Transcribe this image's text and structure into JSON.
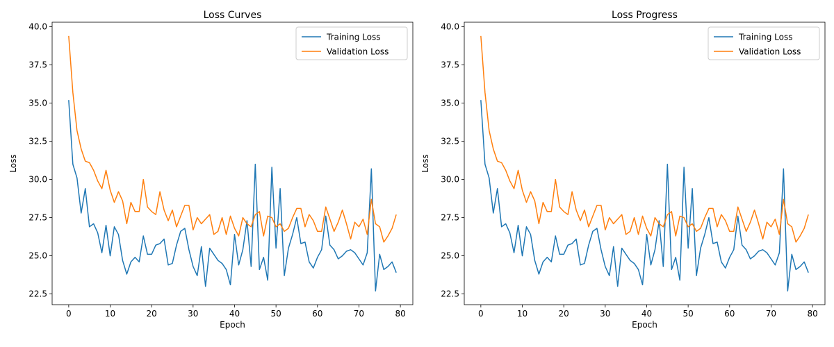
{
  "chart_data": [
    {
      "type": "line",
      "title": "Loss Curves",
      "xlabel": "Epoch",
      "ylabel": "Loss",
      "xlim": [
        -4,
        83
      ],
      "ylim": [
        21.8,
        40.3
      ],
      "xticks": [
        0,
        10,
        20,
        30,
        40,
        50,
        60,
        70,
        80
      ],
      "yticks": [
        22.5,
        25.0,
        27.5,
        30.0,
        32.5,
        35.0,
        37.5,
        40.0
      ],
      "ytick_labels": [
        "22.5",
        "25.0",
        "27.5",
        "30.0",
        "32.5",
        "35.0",
        "37.5",
        "40.0"
      ],
      "grid": false,
      "legend": "top-right",
      "series": [
        {
          "name": "Training Loss",
          "color": "#1f77b4",
          "values": [
            35.2,
            31.0,
            30.1,
            27.8,
            29.4,
            26.9,
            27.1,
            26.5,
            25.2,
            27.0,
            25.0,
            26.9,
            26.4,
            24.7,
            23.8,
            24.6,
            24.9,
            24.6,
            26.3,
            25.1,
            25.1,
            25.7,
            25.8,
            26.1,
            24.4,
            24.5,
            25.7,
            26.6,
            26.8,
            25.4,
            24.3,
            23.7,
            25.6,
            23.0,
            25.5,
            25.1,
            24.7,
            24.5,
            24.1,
            23.1,
            26.4,
            24.4,
            25.4,
            27.3,
            24.3,
            31.0,
            24.1,
            24.9,
            23.4,
            30.8,
            25.5,
            29.4,
            23.7,
            25.5,
            26.4,
            27.5,
            25.8,
            25.9,
            24.6,
            24.2,
            24.9,
            25.4,
            27.6,
            25.7,
            25.4,
            24.8,
            25.0,
            25.3,
            25.4,
            25.2,
            24.8,
            24.4,
            25.2,
            30.7,
            22.7,
            25.1,
            24.1,
            24.3,
            24.6,
            23.9
          ]
        },
        {
          "name": "Validation Loss",
          "color": "#ff7f0e",
          "values": [
            39.4,
            35.7,
            33.2,
            32.0,
            31.2,
            31.1,
            30.6,
            29.9,
            29.4,
            30.6,
            29.3,
            28.5,
            29.2,
            28.6,
            27.1,
            28.5,
            27.9,
            27.9,
            30.0,
            28.2,
            27.9,
            27.7,
            29.2,
            28.0,
            27.3,
            28.0,
            26.9,
            27.6,
            28.3,
            28.3,
            26.7,
            27.5,
            27.1,
            27.4,
            27.7,
            26.4,
            26.6,
            27.5,
            26.4,
            27.6,
            26.8,
            26.3,
            27.5,
            27.1,
            26.9,
            27.7,
            27.9,
            26.3,
            27.6,
            27.5,
            26.9,
            27.1,
            26.6,
            26.8,
            27.5,
            28.1,
            28.1,
            26.9,
            27.7,
            27.3,
            26.6,
            26.6,
            28.2,
            27.4,
            26.6,
            27.2,
            28.0,
            27.1,
            26.1,
            27.2,
            26.9,
            27.4,
            26.4,
            28.7,
            27.1,
            26.9,
            25.9,
            26.3,
            26.8,
            27.7
          ]
        }
      ]
    },
    {
      "type": "line",
      "title": "Loss Progress",
      "xlabel": "Epoch",
      "ylabel": "Loss",
      "xlim": [
        -4,
        83
      ],
      "ylim": [
        21.8,
        40.3
      ],
      "xticks": [
        0,
        10,
        20,
        30,
        40,
        50,
        60,
        70,
        80
      ],
      "yticks": [
        22.5,
        25.0,
        27.5,
        30.0,
        32.5,
        35.0,
        37.5,
        40.0
      ],
      "ytick_labels": [
        "22.5",
        "25.0",
        "27.5",
        "30.0",
        "32.5",
        "35.0",
        "37.5",
        "40.0"
      ],
      "grid": false,
      "legend": "top-right",
      "series": [
        {
          "name": "Training Loss",
          "color": "#1f77b4",
          "values": [
            35.2,
            31.0,
            30.1,
            27.8,
            29.4,
            26.9,
            27.1,
            26.5,
            25.2,
            27.0,
            25.0,
            26.9,
            26.4,
            24.7,
            23.8,
            24.6,
            24.9,
            24.6,
            26.3,
            25.1,
            25.1,
            25.7,
            25.8,
            26.1,
            24.4,
            24.5,
            25.7,
            26.6,
            26.8,
            25.4,
            24.3,
            23.7,
            25.6,
            23.0,
            25.5,
            25.1,
            24.7,
            24.5,
            24.1,
            23.1,
            26.4,
            24.4,
            25.4,
            27.3,
            24.3,
            31.0,
            24.1,
            24.9,
            23.4,
            30.8,
            25.5,
            29.4,
            23.7,
            25.5,
            26.4,
            27.5,
            25.8,
            25.9,
            24.6,
            24.2,
            24.9,
            25.4,
            27.6,
            25.7,
            25.4,
            24.8,
            25.0,
            25.3,
            25.4,
            25.2,
            24.8,
            24.4,
            25.2,
            30.7,
            22.7,
            25.1,
            24.1,
            24.3,
            24.6,
            23.9
          ]
        },
        {
          "name": "Validation Loss",
          "color": "#ff7f0e",
          "values": [
            39.4,
            35.7,
            33.2,
            32.0,
            31.2,
            31.1,
            30.6,
            29.9,
            29.4,
            30.6,
            29.3,
            28.5,
            29.2,
            28.6,
            27.1,
            28.5,
            27.9,
            27.9,
            30.0,
            28.2,
            27.9,
            27.7,
            29.2,
            28.0,
            27.3,
            28.0,
            26.9,
            27.6,
            28.3,
            28.3,
            26.7,
            27.5,
            27.1,
            27.4,
            27.7,
            26.4,
            26.6,
            27.5,
            26.4,
            27.6,
            26.8,
            26.3,
            27.5,
            27.1,
            26.9,
            27.7,
            27.9,
            26.3,
            27.6,
            27.5,
            26.9,
            27.1,
            26.6,
            26.8,
            27.5,
            28.1,
            28.1,
            26.9,
            27.7,
            27.3,
            26.6,
            26.6,
            28.2,
            27.4,
            26.6,
            27.2,
            28.0,
            27.1,
            26.1,
            27.2,
            26.9,
            27.4,
            26.4,
            28.7,
            27.1,
            26.9,
            25.9,
            26.3,
            26.8,
            27.7
          ]
        }
      ]
    }
  ]
}
